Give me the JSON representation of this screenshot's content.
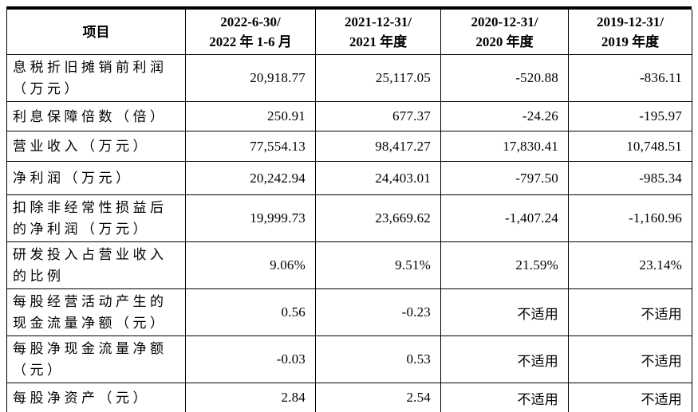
{
  "page": {
    "background_color": "#ffffff",
    "text_color": "#000000",
    "border_color": "#000000"
  },
  "table": {
    "header": {
      "item_label": "项目",
      "period_columns": [
        {
          "line1": "2022-6-30/",
          "line2": "2022 年 1-6 月"
        },
        {
          "line1": "2021-12-31/",
          "line2": "2021 年度"
        },
        {
          "line1": "2020-12-31/",
          "line2": "2020 年度"
        },
        {
          "line1": "2019-12-31/",
          "line2": "2019 年度"
        }
      ]
    },
    "rows": [
      {
        "label": "息税折旧摊销前利润（万元）",
        "values": [
          "20,918.77",
          "25,117.05",
          "-520.88",
          "-836.11"
        ]
      },
      {
        "label": "利息保障倍数（倍）",
        "values": [
          "250.91",
          "677.37",
          "-24.26",
          "-195.97"
        ]
      },
      {
        "label": "营业收入（万元）",
        "values": [
          "77,554.13",
          "98,417.27",
          "17,830.41",
          "10,748.51"
        ]
      },
      {
        "label": "净利润（万元）",
        "values": [
          "20,242.94",
          "24,403.01",
          "-797.50",
          "-985.34"
        ]
      },
      {
        "label": "扣除非经常性损益后的净利润（万元）",
        "values": [
          "19,999.73",
          "23,669.62",
          "-1,407.24",
          "-1,160.96"
        ]
      },
      {
        "label": "研发投入占营业收入的比例",
        "values": [
          "9.06%",
          "9.51%",
          "21.59%",
          "23.14%"
        ]
      },
      {
        "label": "每股经营活动产生的现金流量净额（元）",
        "values": [
          "0.56",
          "-0.23",
          "不适用",
          "不适用"
        ]
      },
      {
        "label": "每股净现金流量净额（元）",
        "values": [
          "-0.03",
          "0.53",
          "不适用",
          "不适用"
        ]
      },
      {
        "label": "每股净资产（元）",
        "values": [
          "2.84",
          "2.54",
          "不适用",
          "不适用"
        ]
      }
    ]
  }
}
